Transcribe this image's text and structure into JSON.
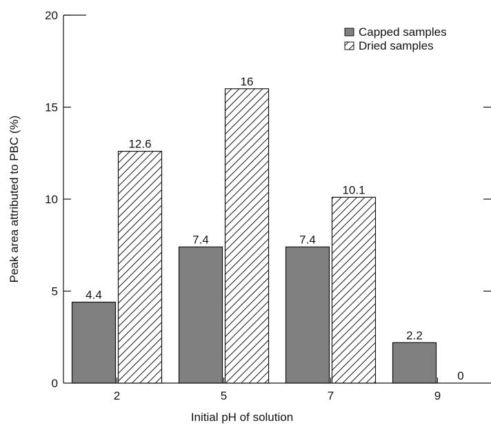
{
  "chart_data": {
    "type": "bar",
    "categories": [
      "2",
      "5",
      "7",
      "9"
    ],
    "series": [
      {
        "name": "Capped samples",
        "values": [
          4.4,
          7.4,
          7.4,
          2.2
        ],
        "fill": "#808080",
        "pattern": "solid"
      },
      {
        "name": "Dried samples",
        "values": [
          12.6,
          16,
          10.1,
          0
        ],
        "fill": "#ffffff",
        "pattern": "diagonal-hatch"
      }
    ],
    "data_labels": [
      [
        "4.4",
        "7.4",
        "7.4",
        "2.2"
      ],
      [
        "12.6",
        "16",
        "10.1",
        "0"
      ]
    ],
    "xlabel": "Initial pH of solution",
    "ylabel": "Peak area attributed to PBC (%)",
    "ylim": [
      0,
      20
    ],
    "yticks": [
      0,
      5,
      10,
      15,
      20
    ],
    "grid": false,
    "legend_position": "top-right"
  }
}
